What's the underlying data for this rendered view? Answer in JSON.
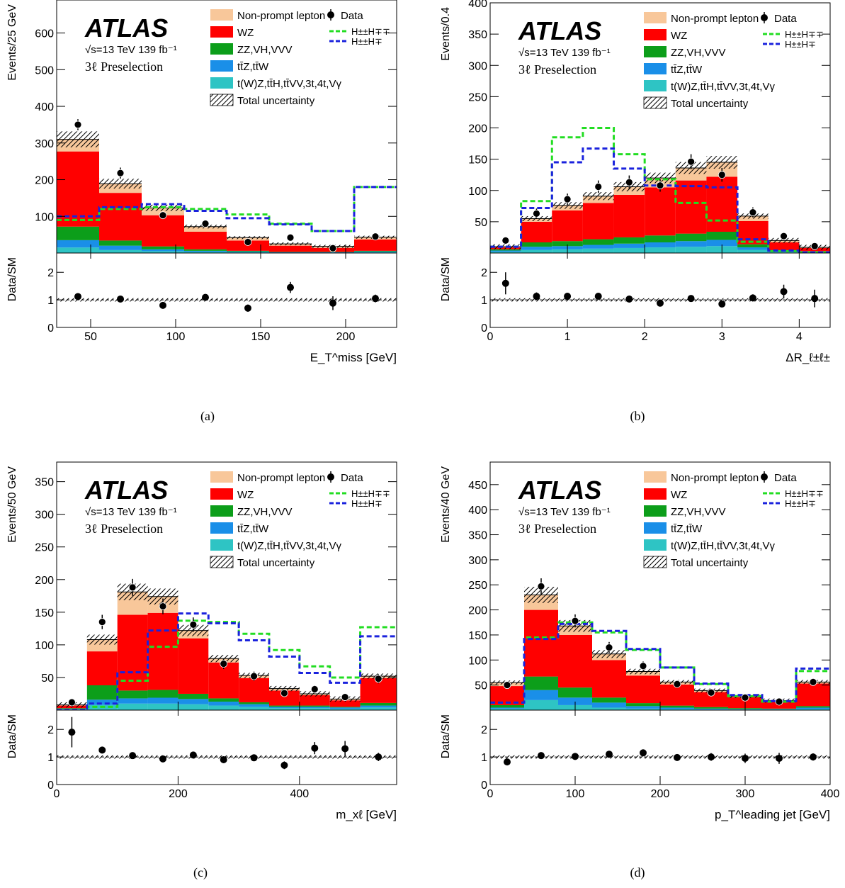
{
  "legend": {
    "nonprompt": "Non-prompt lepton",
    "wz": "WZ",
    "zz": "ZZ,VH,VVV",
    "ttv": "tt̄Z,tt̄W",
    "other": "t(W)Z,tt̄H,tt̄VV,3t,4t,Vγ",
    "unc": "Total uncertainty",
    "data": "Data",
    "sig_pp": "H±±H∓∓",
    "sig_pm": "H±±H∓"
  },
  "atlas_label": "ATLAS",
  "energy_label": "√s=13 TeV 139 fb⁻¹",
  "region_label": "3ℓ Preselection",
  "ratio_ylabel": "Data/SM",
  "colors": {
    "nonprompt": "#f8c79a",
    "wz": "#ff0000",
    "zz": "#0c9e1a",
    "ttv": "#1a8fe8",
    "other": "#2ec4c4",
    "sig_pp": "#22dd22",
    "sig_pm": "#1a22dd",
    "data": "#000000"
  },
  "chart_data": [
    {
      "panel": "(a)",
      "type": "bar",
      "ylabel": "Events/25 GeV",
      "xlabel": "E_T^miss [GeV]",
      "xlim": [
        30,
        230
      ],
      "ylim": [
        0,
        690
      ],
      "yticks": [
        100,
        200,
        300,
        400,
        500,
        600
      ],
      "xticks": [
        50,
        100,
        150,
        200
      ],
      "bins": [
        30,
        55,
        80,
        105,
        130,
        155,
        180,
        205,
        230
      ],
      "stack": {
        "other": [
          15,
          8,
          5,
          3,
          2,
          1,
          1,
          2
        ],
        "ttv": [
          20,
          12,
          5,
          3,
          2,
          1,
          1,
          2
        ],
        "zz": [
          37,
          14,
          8,
          4,
          2,
          1,
          1,
          2
        ],
        "wz": [
          205,
          130,
          85,
          48,
          28,
          17,
          11,
          31
        ],
        "nonprompt": [
          33,
          25,
          20,
          14,
          8,
          5,
          4,
          6
        ]
      },
      "sig_pp": [
        90,
        120,
        125,
        120,
        105,
        80,
        60,
        180
      ],
      "sig_pm": [
        100,
        125,
        133,
        115,
        95,
        78,
        60,
        180
      ],
      "data": {
        "x": [
          42.5,
          67.5,
          92.5,
          117.5,
          142.5,
          167.5,
          192.5,
          217.5
        ],
        "y": [
          350,
          218,
          103,
          80,
          30,
          42,
          13,
          45
        ],
        "err": [
          15,
          15,
          10,
          9,
          6,
          7,
          4,
          7
        ]
      },
      "ratio": {
        "ylim": [
          0,
          2.7
        ],
        "yticks": [
          0,
          1,
          2
        ],
        "y": [
          1.12,
          1.03,
          0.8,
          1.09,
          0.7,
          1.45,
          0.88,
          1.05
        ],
        "err": [
          0.05,
          0.07,
          0.1,
          0.12,
          0.13,
          0.2,
          0.25,
          0.14
        ]
      }
    },
    {
      "panel": "(b)",
      "type": "bar",
      "ylabel": "Events/0.4",
      "xlabel": "ΔR_ℓ±ℓ±",
      "xlim": [
        0,
        4.4
      ],
      "ylim": [
        0,
        400
      ],
      "yticks": [
        50,
        100,
        150,
        200,
        250,
        300,
        350,
        400
      ],
      "xticks": [
        0,
        1,
        2,
        3,
        4
      ],
      "bins": [
        0,
        0.4,
        0.8,
        1.2,
        1.6,
        2.0,
        2.4,
        2.8,
        3.2,
        3.6,
        4.0,
        4.4
      ],
      "stack": {
        "other": [
          2,
          5,
          6,
          7,
          8,
          9,
          10,
          11,
          5,
          1,
          1
        ],
        "ttv": [
          2,
          5,
          5,
          6,
          7,
          8,
          9,
          10,
          4,
          1,
          1
        ],
        "zz": [
          2,
          7,
          8,
          9,
          10,
          11,
          12,
          13,
          5,
          2,
          1
        ],
        "wz": [
          3,
          33,
          49,
          58,
          68,
          77,
          85,
          88,
          37,
          13,
          5
        ],
        "nonprompt": [
          1,
          5,
          8,
          11,
          13,
          15,
          20,
          23,
          8,
          3,
          1
        ]
      },
      "sig_pp": [
        10,
        83,
        185,
        200,
        158,
        118,
        80,
        52,
        18,
        3,
        1
      ],
      "sig_pm": [
        10,
        72,
        145,
        167,
        135,
        108,
        107,
        105,
        22,
        4,
        1
      ],
      "data": {
        "x": [
          0.2,
          0.6,
          1.0,
          1.4,
          1.8,
          2.2,
          2.6,
          3.0,
          3.4,
          3.8,
          4.2
        ],
        "y": [
          20,
          63,
          86,
          106,
          113,
          108,
          146,
          125,
          65,
          27,
          11
        ],
        "err": [
          5,
          8,
          9,
          10,
          11,
          10,
          12,
          11,
          8,
          5,
          3
        ]
      },
      "ratio": {
        "ylim": [
          0,
          2.7
        ],
        "yticks": [
          0,
          1,
          2
        ],
        "y": [
          1.6,
          1.13,
          1.13,
          1.13,
          1.03,
          0.88,
          1.05,
          0.85,
          1.07,
          1.3,
          1.05
        ],
        "err": [
          0.4,
          0.14,
          0.12,
          0.11,
          0.1,
          0.09,
          0.08,
          0.08,
          0.13,
          0.25,
          0.32
        ]
      }
    },
    {
      "panel": "(c)",
      "type": "bar",
      "ylabel": "Events/50 GeV",
      "xlabel": "m_xℓ [GeV]",
      "xlim": [
        0,
        560
      ],
      "ylim": [
        0,
        380
      ],
      "yticks": [
        50,
        100,
        150,
        200,
        250,
        300,
        350
      ],
      "xticks": [
        0,
        200,
        400
      ],
      "bins": [
        0,
        50,
        100,
        150,
        200,
        250,
        300,
        350,
        400,
        450,
        500,
        560
      ],
      "stack": {
        "other": [
          1,
          8,
          10,
          10,
          9,
          7,
          5,
          3,
          3,
          2,
          4
        ],
        "ttv": [
          1,
          8,
          8,
          9,
          8,
          6,
          4,
          2,
          2,
          2,
          3
        ],
        "zz": [
          1,
          22,
          12,
          12,
          8,
          5,
          3,
          2,
          2,
          1,
          4
        ],
        "wz": [
          4,
          52,
          116,
          118,
          85,
          55,
          37,
          23,
          16,
          10,
          38
        ],
        "nonprompt": [
          1,
          18,
          35,
          25,
          12,
          6,
          4,
          3,
          2,
          2,
          3
        ]
      },
      "sig_pp": [
        0,
        5,
        45,
        97,
        137,
        135,
        117,
        92,
        67,
        50,
        127
      ],
      "sig_pm": [
        0,
        10,
        58,
        122,
        148,
        133,
        107,
        82,
        57,
        42,
        113
      ],
      "data": {
        "x": [
          25,
          75,
          125,
          175,
          225,
          275,
          325,
          375,
          425,
          475,
          530
        ],
        "y": [
          12,
          135,
          188,
          159,
          131,
          71,
          52,
          26,
          32,
          20,
          48
        ],
        "err": [
          3,
          11,
          13,
          12,
          11,
          8,
          7,
          5,
          6,
          4,
          7
        ]
      },
      "ratio": {
        "ylim": [
          0,
          2.7
        ],
        "yticks": [
          0,
          1,
          2
        ],
        "y": [
          1.9,
          1.25,
          1.05,
          0.93,
          1.07,
          0.9,
          0.97,
          0.7,
          1.32,
          1.3,
          1.0
        ],
        "err": [
          0.55,
          0.1,
          0.08,
          0.08,
          0.09,
          0.1,
          0.12,
          0.14,
          0.22,
          0.28,
          0.15
        ]
      }
    },
    {
      "panel": "(d)",
      "type": "bar",
      "ylabel": "Events/40 GeV",
      "xlabel": "p_T^leading jet [GeV]",
      "xlim": [
        0,
        400
      ],
      "ylim": [
        0,
        495
      ],
      "yticks": [
        50,
        100,
        150,
        200,
        250,
        300,
        350,
        400,
        450
      ],
      "xticks": [
        0,
        100,
        200,
        300,
        400
      ],
      "bins": [
        0,
        40,
        80,
        120,
        160,
        200,
        240,
        280,
        320,
        360,
        400
      ],
      "stack": {
        "other": [
          3,
          20,
          10,
          5,
          3,
          2,
          1,
          1,
          1,
          2
        ],
        "ttv": [
          2,
          20,
          15,
          10,
          5,
          3,
          2,
          1,
          1,
          3
        ],
        "zz": [
          5,
          27,
          20,
          10,
          6,
          4,
          3,
          2,
          1,
          3
        ],
        "wz": [
          38,
          133,
          105,
          75,
          55,
          42,
          30,
          22,
          15,
          45
        ],
        "nonprompt": [
          7,
          30,
          18,
          12,
          8,
          5,
          3,
          2,
          1,
          3
        ]
      },
      "sig_pp": [
        15,
        145,
        175,
        155,
        120,
        85,
        52,
        28,
        17,
        78
      ],
      "sig_pm": [
        15,
        142,
        172,
        158,
        122,
        85,
        53,
        30,
        18,
        83
      ],
      "data": {
        "x": [
          20,
          60,
          100,
          140,
          180,
          220,
          260,
          300,
          340,
          380
        ],
        "y": [
          50,
          247,
          178,
          125,
          88,
          52,
          35,
          25,
          17,
          56
        ],
        "err": [
          7,
          16,
          13,
          11,
          9,
          7,
          6,
          5,
          4,
          7
        ]
      },
      "ratio": {
        "ylim": [
          0,
          2.7
        ],
        "yticks": [
          0,
          1,
          2
        ],
        "y": [
          0.82,
          1.05,
          1.02,
          1.1,
          1.15,
          0.98,
          1.0,
          0.95,
          0.95,
          1.0
        ],
        "err": [
          0.1,
          0.07,
          0.08,
          0.09,
          0.11,
          0.12,
          0.14,
          0.17,
          0.2,
          0.13
        ]
      }
    }
  ]
}
